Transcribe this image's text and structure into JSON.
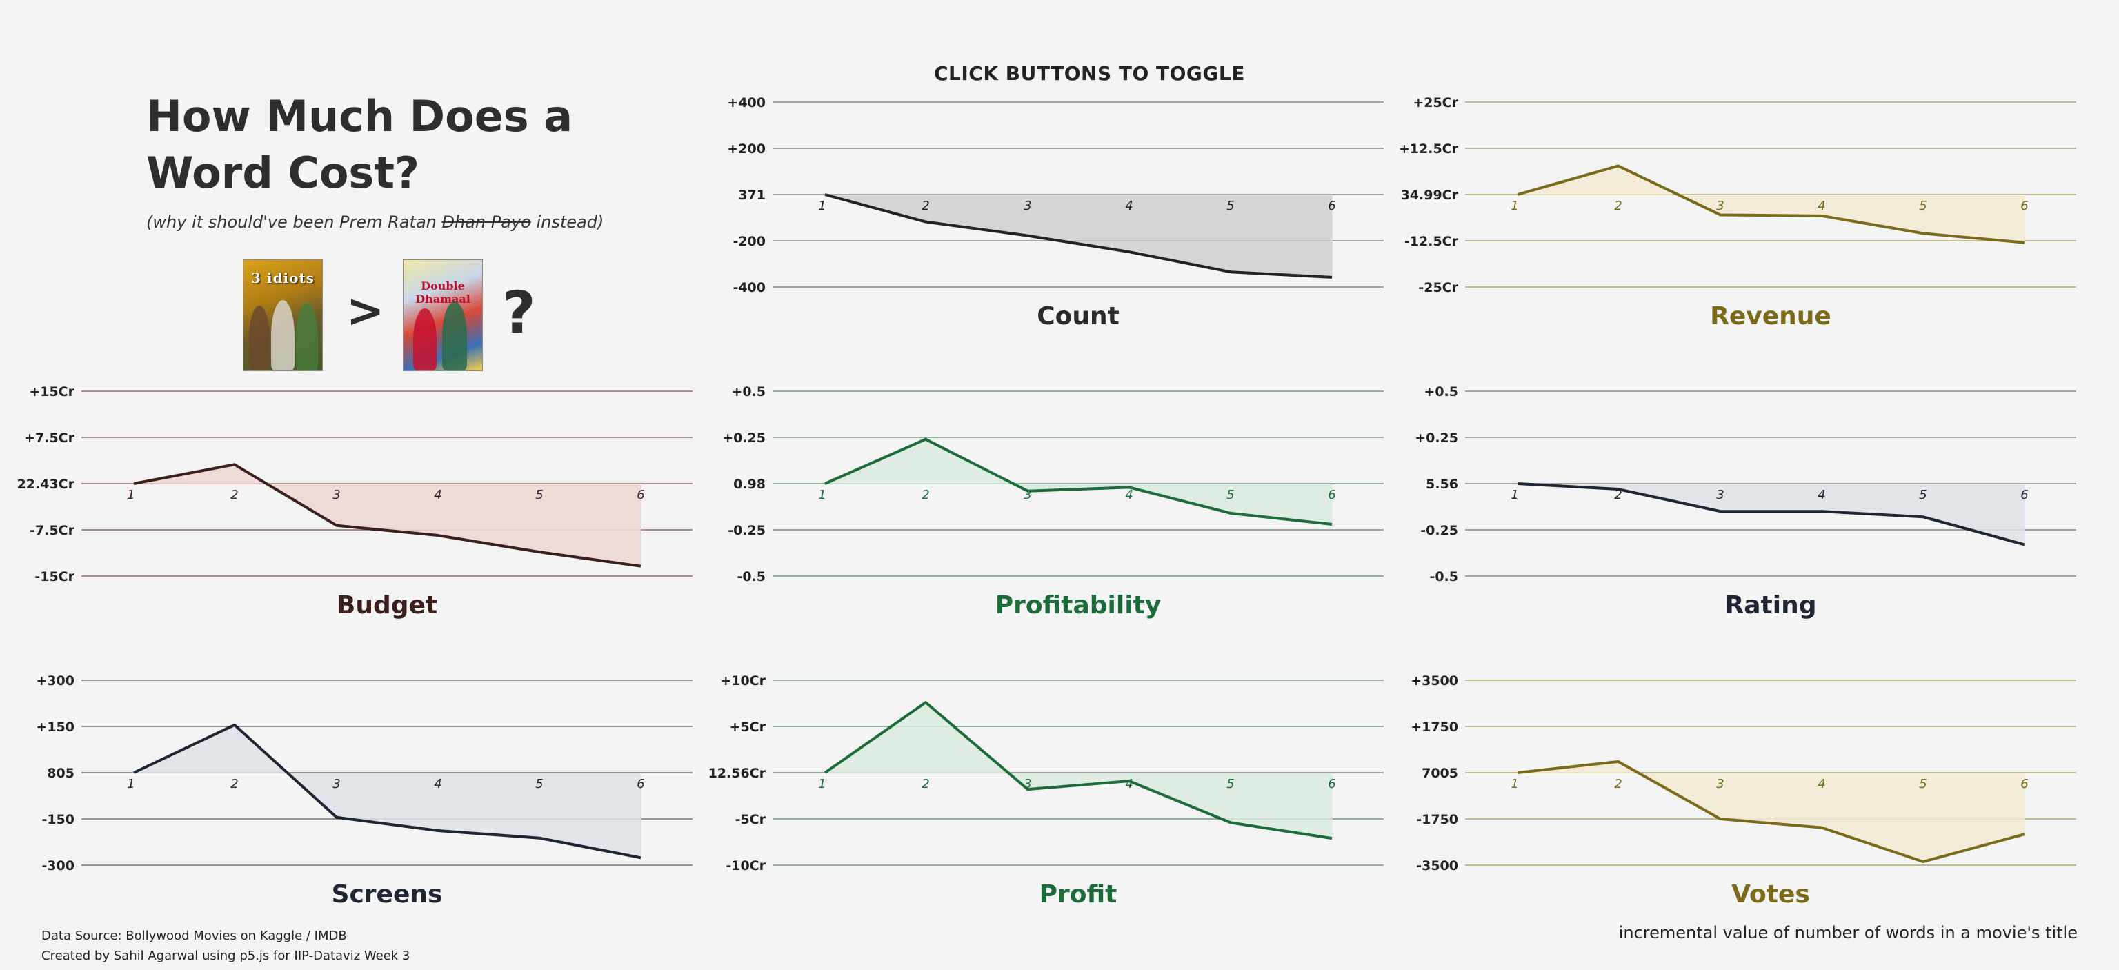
{
  "title_line1": "How Much Does a",
  "title_line2": "Word Cost?",
  "subtitle": {
    "before": "(why it should've been Prem Ratan ",
    "struck": "Dhan Payo",
    "after": " instead)"
  },
  "posters": {
    "first_text": "3 idiots",
    "second_text": "Double Dhamaal",
    "gt_symbol": ">",
    "question_symbol": "?"
  },
  "toggle_label": "CLICK BUTTONS TO TOGGLE",
  "footer": {
    "source": "Data Source: Bollywood Movies on Kaggle / IMDB",
    "credit": "Created by Sahil Agarwal using p5.js for IIP-Dataviz Week 3",
    "note": "incremental value of number of words in a movie's title"
  },
  "chart_data": [
    {
      "name": "Count",
      "type": "area",
      "color": "#222222",
      "fill": "#cfcfcf",
      "gridColor": "#888888",
      "title": "Count",
      "x": [
        1,
        2,
        3,
        4,
        5,
        6
      ],
      "values": [
        0,
        -118,
        -178,
        -248,
        -335,
        -358
      ],
      "baseline_label": "371",
      "ticks": [
        "+400",
        "+200",
        "371",
        "-200",
        "-400"
      ],
      "ylim": [
        -400,
        400
      ]
    },
    {
      "name": "Revenue",
      "type": "area",
      "color": "#7a6a1a",
      "fill": "#f1ead4",
      "gridColor": "#b5a86a",
      "title": "Revenue",
      "x": [
        1,
        2,
        3,
        4,
        5,
        6
      ],
      "values": [
        0,
        15.5,
        -11,
        -11.5,
        -21,
        -26
      ],
      "baseline_label": "34.99Cr",
      "ticks": [
        "+25Cr",
        "+12.5Cr",
        "34.99Cr",
        "-12.5Cr",
        "-25Cr"
      ],
      "ylim": [
        -50,
        50
      ]
    },
    {
      "name": "Budget",
      "type": "area",
      "color": "#3b1f1a",
      "fill": "#ead6d2",
      "gridColor": "#9a6a66",
      "title": "Budget",
      "x": [
        1,
        2,
        3,
        4,
        5,
        6
      ],
      "values": [
        0,
        3.1,
        -6.8,
        -8.4,
        -11.1,
        -13.4
      ],
      "baseline_label": "22.43Cr",
      "ticks": [
        "+15Cr",
        "+7.5Cr",
        "22.43Cr",
        "-7.5Cr",
        "-15Cr"
      ],
      "ylim": [
        -15,
        15
      ]
    },
    {
      "name": "Profitability",
      "type": "area",
      "color": "#1e6b3a",
      "fill": "#d9eadd",
      "gridColor": "#6f9a7f",
      "title": "Profitability",
      "x": [
        1,
        2,
        3,
        4,
        5,
        6
      ],
      "values": [
        0,
        0.24,
        -0.04,
        -0.02,
        -0.16,
        -0.22
      ],
      "baseline_label": "0.98",
      "ticks": [
        "+0.5",
        "+0.25",
        "0.98",
        "-0.25",
        "-0.5"
      ],
      "ylim": [
        -0.5,
        0.5
      ]
    },
    {
      "name": "Rating",
      "type": "area",
      "color": "#1e2533",
      "fill": "#dde2e8",
      "gridColor": "#888888",
      "title": "Rating",
      "x": [
        1,
        2,
        3,
        4,
        5,
        6
      ],
      "values": [
        0,
        -0.03,
        -0.15,
        -0.15,
        -0.18,
        -0.33
      ],
      "baseline_label": "5.56",
      "ticks": [
        "+0.5",
        "+0.25",
        "5.56",
        "-0.25",
        "-0.5"
      ],
      "ylim": [
        -0.5,
        0.5
      ]
    },
    {
      "name": "Screens",
      "type": "area",
      "color": "#1e2533",
      "fill": "#dde2e8",
      "gridColor": "#777777",
      "title": "Screens",
      "x": [
        1,
        2,
        3,
        4,
        5,
        6
      ],
      "values": [
        0,
        155,
        -145,
        -188,
        -212,
        -276
      ],
      "baseline_label": "805",
      "ticks": [
        "+300",
        "+150",
        "805",
        "-150",
        "-300"
      ],
      "ylim": [
        -300,
        300
      ]
    },
    {
      "name": "Profit",
      "type": "area",
      "color": "#1e6b3a",
      "fill": "#d9eadd",
      "gridColor": "#6f9a7f",
      "title": "Profit",
      "x": [
        1,
        2,
        3,
        4,
        5,
        6
      ],
      "values": [
        0,
        7.6,
        -1.8,
        -0.9,
        -5.4,
        -7.1
      ],
      "baseline_label": "12.56Cr",
      "ticks": [
        "+10Cr",
        "+5Cr",
        "12.56Cr",
        "-5Cr",
        "-10Cr"
      ],
      "ylim": [
        -10,
        10
      ]
    },
    {
      "name": "Votes",
      "type": "area",
      "color": "#7a6a1a",
      "fill": "#f1ead4",
      "gridColor": "#b5a86a",
      "title": "Votes",
      "x": [
        1,
        2,
        3,
        4,
        5,
        6
      ],
      "values": [
        0,
        420,
        -1750,
        -2080,
        -3370,
        -2330
      ],
      "baseline_label": "7005",
      "ticks": [
        "+3500",
        "+1750",
        "7005",
        "-1750",
        "-3500"
      ],
      "ylim": [
        -3500,
        3500
      ]
    }
  ]
}
